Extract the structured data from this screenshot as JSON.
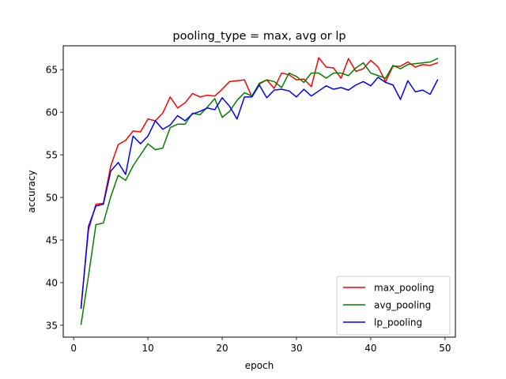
{
  "chart_data": {
    "type": "line",
    "title": "pooling_type = max, avg or lp",
    "xlabel": "epoch",
    "ylabel": "accuracy",
    "xlim": [
      -1.4,
      51.4
    ],
    "ylim": [
      33.6,
      67.8
    ],
    "xticks": [
      0,
      10,
      20,
      30,
      40,
      50
    ],
    "yticks": [
      35,
      40,
      45,
      50,
      55,
      60,
      65
    ],
    "grid": false,
    "legend_position": "lower-right",
    "x": [
      1,
      2,
      3,
      4,
      5,
      6,
      7,
      8,
      9,
      10,
      11,
      12,
      13,
      14,
      15,
      16,
      17,
      18,
      19,
      20,
      21,
      22,
      23,
      24,
      25,
      26,
      27,
      28,
      29,
      30,
      31,
      32,
      33,
      34,
      35,
      36,
      37,
      38,
      39,
      40,
      41,
      42,
      43,
      44,
      45,
      46,
      47,
      48,
      49
    ],
    "series": [
      {
        "name": "max_pooling",
        "color": "#ff0000",
        "values": [
          37.2,
          46.2,
          49.2,
          49.3,
          53.7,
          56.2,
          56.7,
          57.8,
          57.7,
          59.2,
          59.0,
          59.9,
          61.8,
          60.5,
          61.1,
          62.2,
          61.8,
          62.0,
          61.9,
          62.7,
          63.6,
          63.7,
          63.8,
          61.8,
          63.3,
          63.8,
          62.8,
          64.6,
          64.4,
          63.8,
          63.9,
          63.0,
          66.4,
          65.3,
          65.2,
          64.0,
          66.3,
          64.8,
          65.1,
          66.1,
          65.3,
          63.6,
          65.4,
          65.4,
          65.9,
          65.3,
          65.6,
          65.5,
          65.8
        ]
      },
      {
        "name": "avg_pooling",
        "color": "#008000",
        "values": [
          35.1,
          40.8,
          46.8,
          47.0,
          50.1,
          52.6,
          52.0,
          53.7,
          55.0,
          56.3,
          55.6,
          55.8,
          58.2,
          58.6,
          58.6,
          59.9,
          59.7,
          60.6,
          61.6,
          59.4,
          60.1,
          61.4,
          62.3,
          61.9,
          63.4,
          63.8,
          63.6,
          62.9,
          64.6,
          64.2,
          63.5,
          64.6,
          64.6,
          64.0,
          64.6,
          64.6,
          64.3,
          65.2,
          65.8,
          64.6,
          64.3,
          64.0,
          65.5,
          65.1,
          65.6,
          65.7,
          65.8,
          65.9,
          66.3
        ]
      },
      {
        "name": "lp_pooling",
        "color": "#0000ff",
        "values": [
          37.0,
          46.6,
          49.0,
          49.2,
          53.1,
          54.1,
          52.7,
          57.2,
          56.3,
          57.2,
          59.0,
          58.0,
          58.5,
          59.6,
          59.0,
          59.8,
          60.1,
          60.5,
          60.3,
          61.7,
          60.7,
          59.2,
          61.8,
          61.8,
          63.2,
          61.7,
          62.6,
          62.7,
          62.5,
          61.8,
          62.7,
          61.9,
          62.5,
          63.1,
          62.7,
          62.9,
          62.6,
          63.2,
          63.6,
          63.1,
          64.1,
          63.5,
          63.2,
          61.5,
          63.7,
          62.4,
          62.6,
          62.1,
          63.8
        ]
      }
    ]
  }
}
